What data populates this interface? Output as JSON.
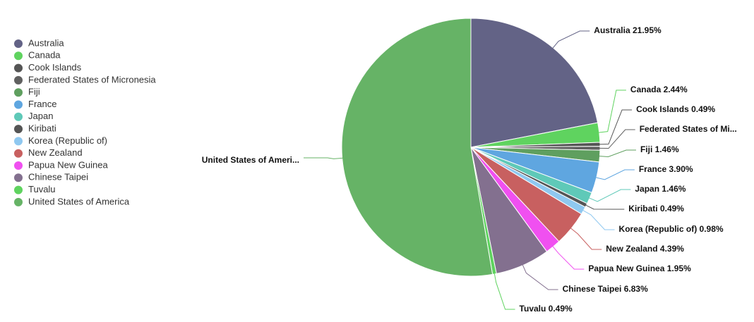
{
  "chart_data": {
    "type": "pie",
    "categories": [
      "Australia",
      "Canada",
      "Cook Islands",
      "Federated States of Micronesia",
      "Fiji",
      "France",
      "Japan",
      "Kiribati",
      "Korea (Republic of)",
      "New Zealand",
      "Papua New Guinea",
      "Chinese Taipei",
      "Tuvalu",
      "United States of America"
    ],
    "values": [
      21.95,
      2.44,
      0.49,
      0.49,
      1.46,
      3.9,
      1.46,
      0.49,
      0.98,
      4.39,
      1.95,
      6.83,
      0.49,
      52.68
    ],
    "value_labels": [
      "Australia 21.95%",
      "Canada 2.44%",
      "Cook Islands 0.49%",
      "Federated States of Mi...",
      "Fiji 1.46%",
      "France 3.90%",
      "Japan 1.46%",
      "Kiribati 0.49%",
      "Korea (Republic of) 0.98%",
      "New Zealand 4.39%",
      "Papua New Guinea 1.95%",
      "Chinese Taipei 6.83%",
      "Tuvalu 0.49%",
      "United States of Ameri..."
    ],
    "colors": [
      "#636386",
      "#5fd35f",
      "#555555",
      "#606060",
      "#5f9f5f",
      "#5fa6e0",
      "#5fc9b8",
      "#555555",
      "#8fc8f0",
      "#c86060",
      "#f050f0",
      "#83708f",
      "#5fd35f",
      "#66b366"
    ],
    "legend": "left"
  }
}
